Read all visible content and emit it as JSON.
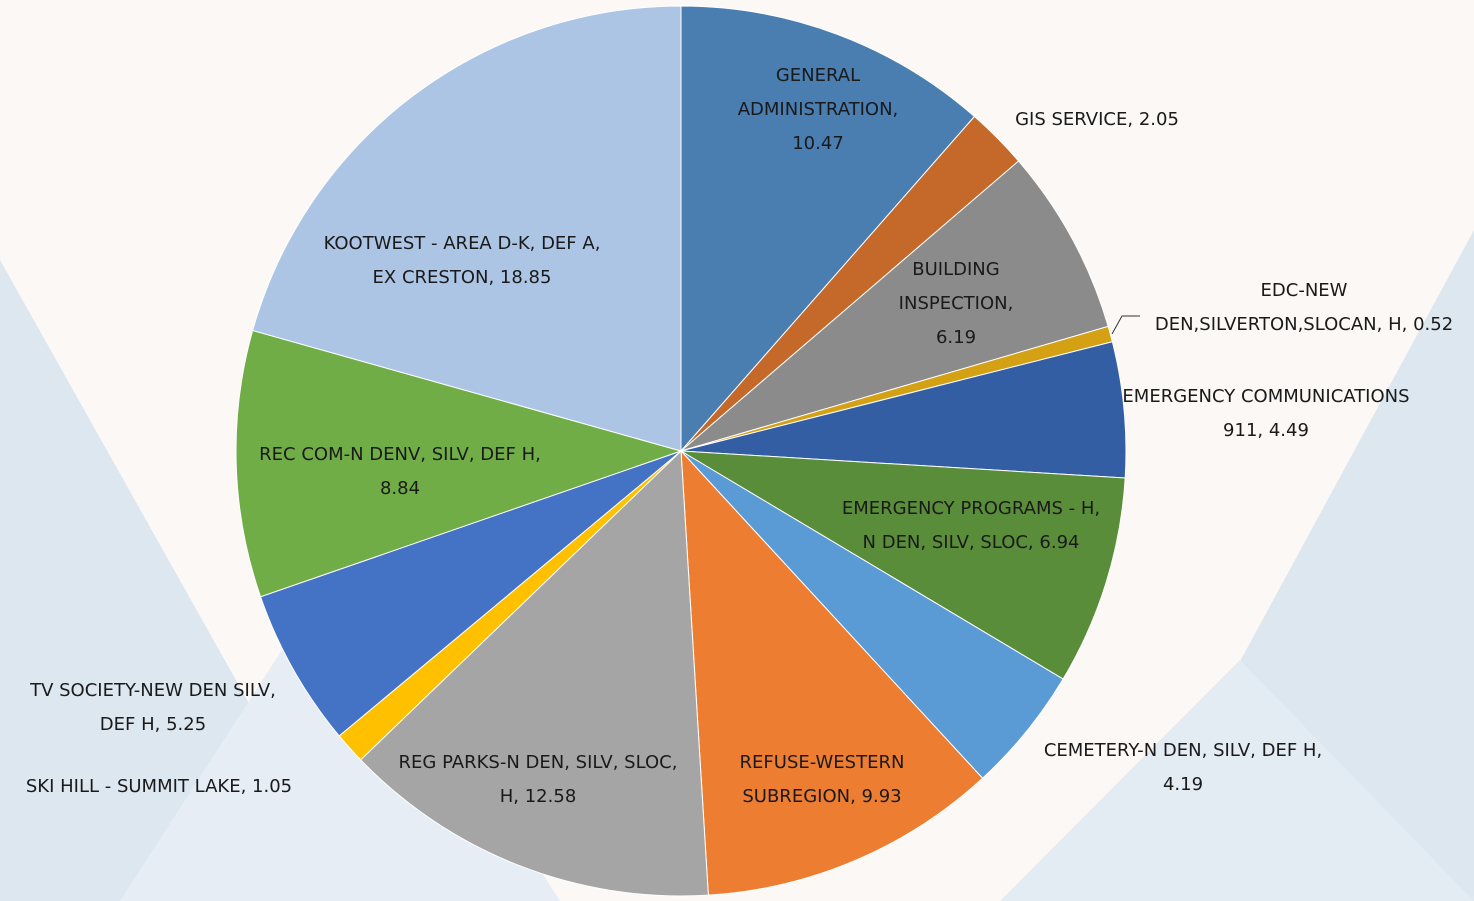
{
  "chart_data": {
    "type": "pie",
    "categories": [
      "GENERAL ADMINISTRATION,",
      "GIS SERVICE,",
      "BUILDING INSPECTION,",
      "EDC-NEW DEN,SILVERTON,SLOCAN, H,",
      "EMERGENCY COMMUNICATIONS 911,",
      "EMERGENCY PROGRAMS - H, N DEN, SILV, SLOC,",
      "CEMETERY-N DEN, SILV, DEF H,",
      "REFUSE-WESTERN SUBREGION,",
      "REG PARKS-N DEN, SILV, SLOC, H,",
      "SKI HILL - SUMMIT LAKE,",
      "TV SOCIETY-NEW DEN SILV, DEF H,",
      "REC COM-N DENV, SILV, DEF H,",
      "KOOTWEST - AREA D-K, DEF A, EX CRESTON,"
    ],
    "values": [
      10.47,
      2.05,
      6.19,
      0.52,
      4.49,
      6.94,
      4.19,
      9.93,
      12.58,
      1.05,
      5.25,
      8.84,
      18.85
    ],
    "colors": [
      "#4a7db0",
      "#c5692a",
      "#8b8b8b",
      "#d4a014",
      "#345ea4",
      "#5a8d39",
      "#5b9bd5",
      "#ed7d31",
      "#a5a5a5",
      "#ffc000",
      "#4472c4",
      "#70ad47",
      "#adc5e4"
    ]
  }
}
